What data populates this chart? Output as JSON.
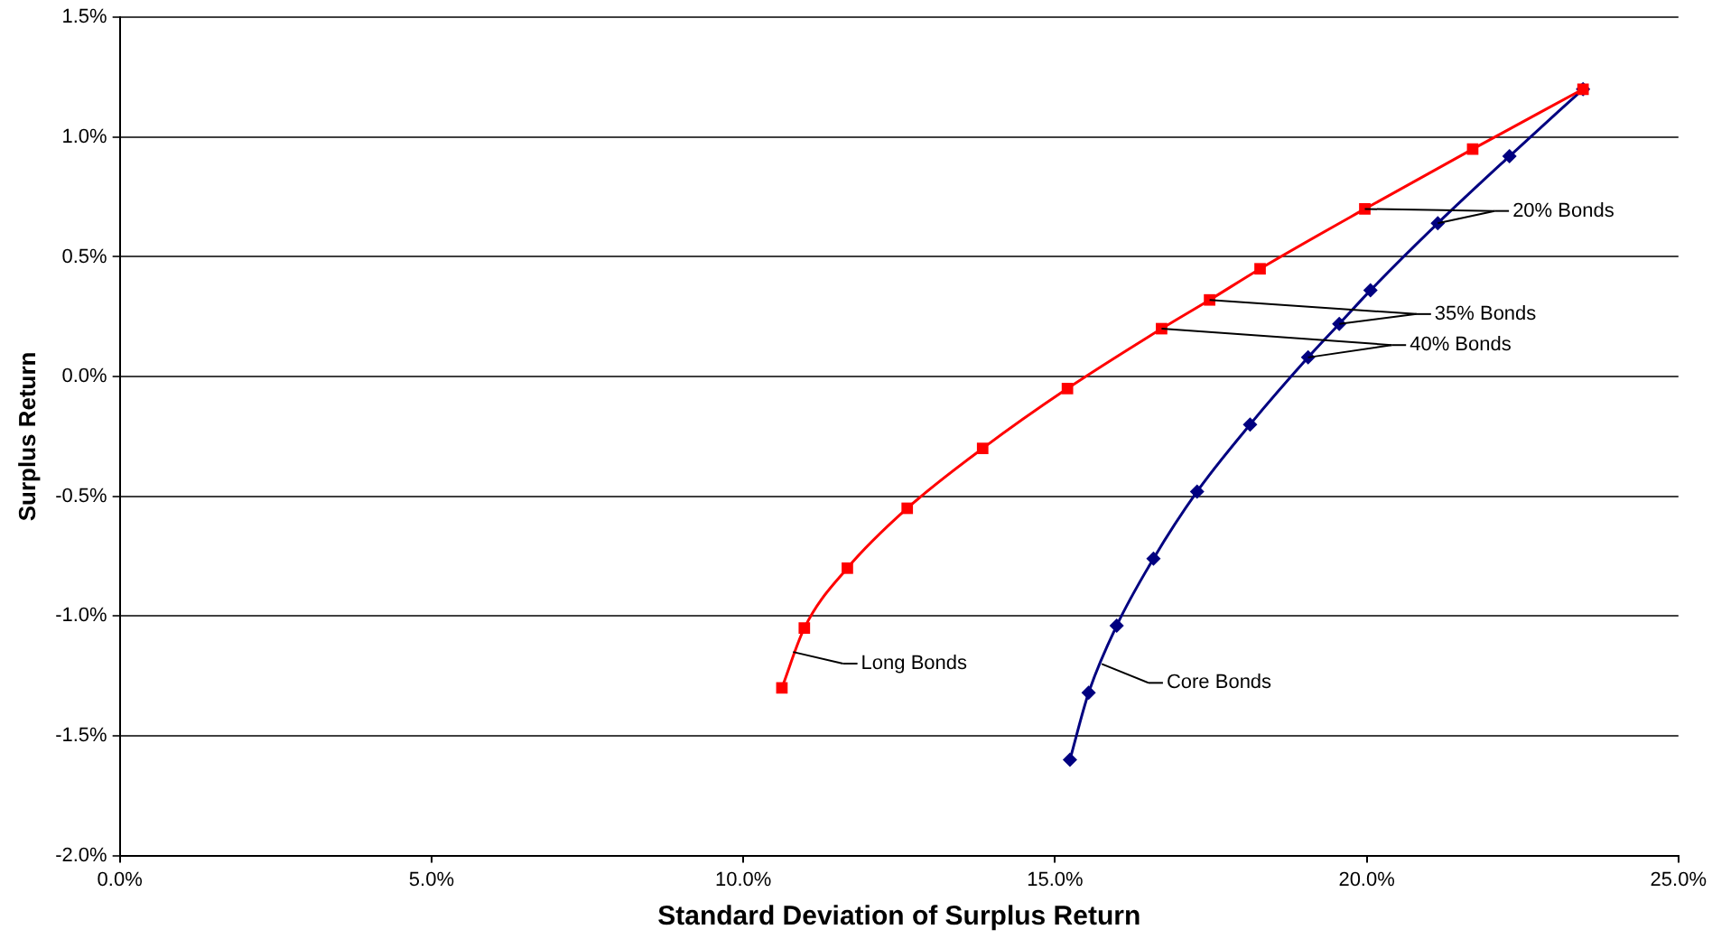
{
  "chart_data": {
    "type": "line",
    "xlabel": "Standard Deviation of Surplus Return",
    "ylabel": "Surplus Return",
    "xlim": [
      0,
      25
    ],
    "xticks": [
      {
        "value": 0,
        "label": "0.0%"
      },
      {
        "value": 5,
        "label": "5.0%"
      },
      {
        "value": 10,
        "label": "10.0%"
      },
      {
        "value": 15,
        "label": "15.0%"
      },
      {
        "value": 20,
        "label": "20.0%"
      },
      {
        "value": 25,
        "label": "25.0%"
      }
    ],
    "ylim": [
      -2,
      1.5
    ],
    "yticks": [
      {
        "value": -2,
        "label": "-2.0%"
      },
      {
        "value": -1.5,
        "label": "-1.5%"
      },
      {
        "value": -1,
        "label": "-1.0%"
      },
      {
        "value": -0.5,
        "label": "-0.5%"
      },
      {
        "value": 0,
        "label": "0.0%"
      },
      {
        "value": 0.5,
        "label": "0.5%"
      },
      {
        "value": 1,
        "label": "1.0%"
      },
      {
        "value": 1.5,
        "label": "1.5%"
      }
    ],
    "grid": "y",
    "legend": false,
    "series": [
      {
        "color": "#ff0000",
        "marker": "square",
        "x": [
          10.62,
          10.98,
          11.67,
          12.63,
          13.84,
          15.2,
          16.71,
          17.48,
          18.29,
          19.97,
          21.7,
          23.47
        ],
        "values": [
          -1.3,
          -1.05,
          -0.8,
          -0.55,
          -0.3,
          -0.05,
          0.2,
          0.32,
          0.45,
          0.7,
          0.95,
          1.2
        ]
      },
      {
        "color": "#000080",
        "marker": "diamond",
        "x": [
          15.24,
          15.54,
          15.99,
          16.58,
          17.28,
          18.13,
          19.06,
          19.56,
          20.06,
          21.14,
          22.29,
          23.47
        ],
        "values": [
          -1.6,
          -1.32,
          -1.04,
          -0.76,
          -0.48,
          -0.2,
          0.08,
          0.22,
          0.36,
          0.64,
          0.92,
          1.2
        ]
      }
    ],
    "annotations": [
      {
        "text": "20% Bonds",
        "x": 19.97,
        "y": 0.7
      },
      {
        "text": "35% Bonds",
        "x": 17.48,
        "y": 0.32
      },
      {
        "text": "40% Bonds",
        "x": 16.71,
        "y": 0.2
      },
      {
        "text": "Long Bonds",
        "x": 10.8,
        "y": -1.15
      },
      {
        "text": "Core Bonds",
        "x": 15.75,
        "y": -1.2
      }
    ]
  }
}
